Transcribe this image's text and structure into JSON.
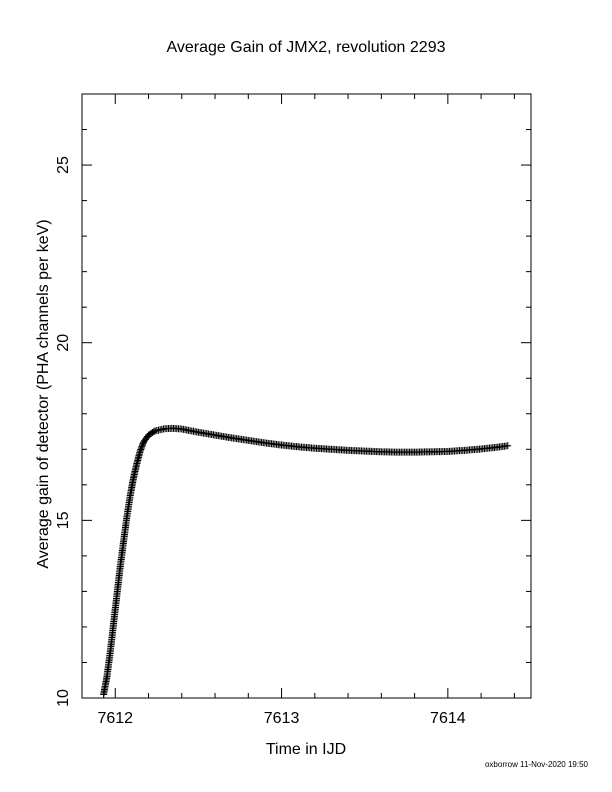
{
  "footer": {
    "credit": "oxborrow 11-Nov-2020 19:50"
  },
  "chart_data": {
    "type": "scatter",
    "title": "Average Gain of JMX2, revolution 2293",
    "xlabel": "Time in IJD",
    "ylabel": "Average gain of detector (PHA channels per keV)",
    "xlim": [
      7611.8,
      7614.5
    ],
    "ylim": [
      10,
      27
    ],
    "xticks": [
      7612,
      7613,
      7614
    ],
    "yticks": [
      10,
      15,
      20,
      25
    ],
    "grid": false,
    "marker": "plus",
    "color": "#000000",
    "series": [
      {
        "values": [
          [
            7611.93,
            10.1
          ],
          [
            7611.95,
            10.6
          ],
          [
            7611.97,
            11.3
          ],
          [
            7611.99,
            12.1
          ],
          [
            7612.01,
            12.9
          ],
          [
            7612.03,
            13.7
          ],
          [
            7612.05,
            14.4
          ],
          [
            7612.07,
            15.1
          ],
          [
            7612.09,
            15.7
          ],
          [
            7612.11,
            16.2
          ],
          [
            7612.13,
            16.6
          ],
          [
            7612.15,
            16.95
          ],
          [
            7612.17,
            17.2
          ],
          [
            7612.2,
            17.4
          ],
          [
            7612.24,
            17.52
          ],
          [
            7612.3,
            17.58
          ],
          [
            7612.35,
            17.59
          ],
          [
            7612.4,
            17.57
          ],
          [
            7612.5,
            17.48
          ],
          [
            7612.6,
            17.4
          ],
          [
            7612.7,
            17.32
          ],
          [
            7612.8,
            17.25
          ],
          [
            7612.9,
            17.18
          ],
          [
            7613.0,
            17.12
          ],
          [
            7613.1,
            17.07
          ],
          [
            7613.2,
            17.03
          ],
          [
            7613.3,
            17.0
          ],
          [
            7613.4,
            16.97
          ],
          [
            7613.5,
            16.95
          ],
          [
            7613.6,
            16.93
          ],
          [
            7613.7,
            16.92
          ],
          [
            7613.8,
            16.92
          ],
          [
            7613.9,
            16.93
          ],
          [
            7614.0,
            16.94
          ],
          [
            7614.1,
            16.97
          ],
          [
            7614.2,
            17.01
          ],
          [
            7614.3,
            17.06
          ],
          [
            7614.36,
            17.1
          ]
        ]
      }
    ]
  }
}
